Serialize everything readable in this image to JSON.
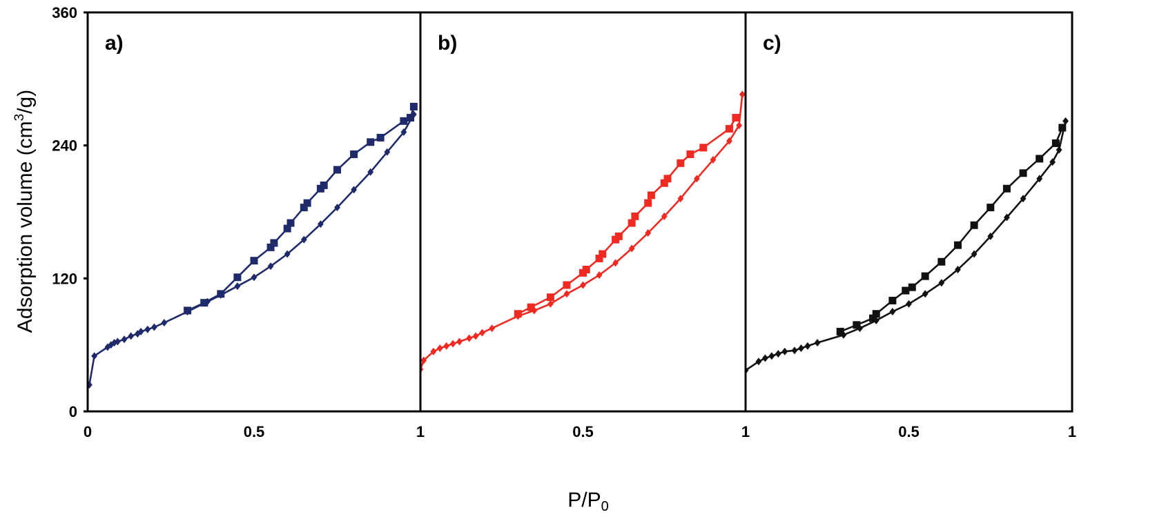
{
  "chart_data": {
    "type": "line",
    "ylabel": "Adsorption volume (cm³/g)",
    "ylabel_parts": {
      "base": "Adsorption volume (cm",
      "sup": "3",
      "tail": "/g)"
    },
    "xlabel": "P/P₀",
    "xlabel_parts": {
      "base": "P/P",
      "sub": "0"
    },
    "ylim": [
      0,
      360
    ],
    "yticks": [
      "0",
      "120",
      "240",
      "360"
    ],
    "xlim": [
      0,
      1
    ],
    "xticks": [
      "0",
      "0.5",
      "1"
    ],
    "grid": false,
    "panels": [
      {
        "label": "a)",
        "color": "#1f2a6b",
        "series": [
          {
            "marker": "diamond",
            "x": [
              0.005,
              0.02,
              0.06,
              0.07,
              0.08,
              0.09,
              0.11,
              0.13,
              0.15,
              0.16,
              0.18,
              0.2,
              0.23,
              0.3,
              0.36,
              0.4,
              0.45,
              0.5,
              0.55,
              0.6,
              0.65,
              0.7,
              0.75,
              0.8,
              0.85,
              0.9,
              0.95,
              0.98
            ],
            "y": [
              24,
              50,
              58,
              60,
              62,
              63,
              65,
              68,
              70,
              72,
              74,
              76,
              80,
              90,
              99,
              105,
              113,
              121,
              131,
              142,
              155,
              169,
              184,
              200,
              216,
              234,
              252,
              268
            ]
          },
          {
            "marker": "square",
            "x": [
              0.3,
              0.35,
              0.4,
              0.45,
              0.5,
              0.55,
              0.56,
              0.6,
              0.61,
              0.65,
              0.66,
              0.7,
              0.71,
              0.75,
              0.8,
              0.85,
              0.88,
              0.95,
              0.97,
              0.98
            ],
            "y": [
              91,
              98,
              106,
              121,
              136,
              148,
              152,
              165,
              170,
              184,
              188,
              201,
              204,
              218,
              232,
              243,
              247,
              262,
              265,
              275
            ]
          }
        ]
      },
      {
        "label": "b)",
        "color": "#ee2a22",
        "series": [
          {
            "marker": "diamond",
            "x": [
              0.0,
              0.01,
              0.04,
              0.06,
              0.08,
              0.1,
              0.12,
              0.15,
              0.17,
              0.19,
              0.22,
              0.3,
              0.35,
              0.4,
              0.45,
              0.5,
              0.55,
              0.6,
              0.65,
              0.7,
              0.75,
              0.8,
              0.85,
              0.9,
              0.95,
              0.98,
              0.99
            ],
            "y": [
              38,
              46,
              54,
              57,
              59,
              61,
              63,
              66,
              68,
              71,
              75,
              86,
              91,
              97,
              106,
              114,
              123,
              134,
              147,
              161,
              176,
              192,
              210,
              227,
              244,
              258,
              286
            ]
          },
          {
            "marker": "square",
            "x": [
              0.3,
              0.34,
              0.4,
              0.45,
              0.5,
              0.51,
              0.55,
              0.56,
              0.6,
              0.61,
              0.65,
              0.66,
              0.7,
              0.71,
              0.75,
              0.76,
              0.8,
              0.83,
              0.87,
              0.95,
              0.97
            ],
            "y": [
              88,
              94,
              103,
              114,
              125,
              128,
              138,
              142,
              155,
              158,
              170,
              176,
              188,
              195,
              206,
              210,
              224,
              232,
              238,
              255,
              265
            ]
          }
        ]
      },
      {
        "label": "c)",
        "color": "#111111",
        "series": [
          {
            "marker": "diamond",
            "x": [
              0.0,
              0.04,
              0.06,
              0.08,
              0.1,
              0.12,
              0.15,
              0.17,
              0.19,
              0.22,
              0.3,
              0.35,
              0.4,
              0.45,
              0.5,
              0.55,
              0.6,
              0.65,
              0.7,
              0.75,
              0.8,
              0.85,
              0.9,
              0.94,
              0.96,
              0.98
            ],
            "y": [
              37,
              45,
              48,
              50,
              52,
              54,
              55,
              57,
              59,
              62,
              69,
              75,
              82,
              90,
              97,
              106,
              116,
              128,
              142,
              158,
              175,
              192,
              210,
              225,
              236,
              262
            ]
          },
          {
            "marker": "square",
            "x": [
              0.29,
              0.34,
              0.39,
              0.4,
              0.45,
              0.49,
              0.51,
              0.55,
              0.6,
              0.65,
              0.7,
              0.75,
              0.8,
              0.85,
              0.9,
              0.95,
              0.97
            ],
            "y": [
              72,
              78,
              84,
              88,
              100,
              109,
              112,
              122,
              135,
              150,
              168,
              184,
              201,
              215,
              228,
              242,
              256
            ]
          }
        ]
      }
    ]
  }
}
